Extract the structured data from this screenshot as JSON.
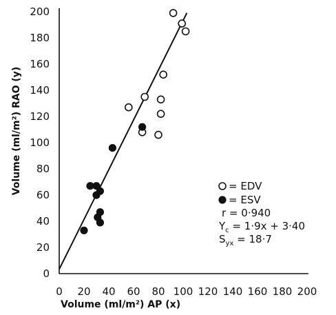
{
  "chart_data": {
    "type": "scatter",
    "title": "",
    "xlabel": "Volume (ml/m²) AP (x)",
    "ylabel": "Volume (ml/m²) RAO (y)",
    "xlim": [
      0,
      200
    ],
    "ylim": [
      0,
      200
    ],
    "x_ticks": [
      0,
      20,
      40,
      60,
      80,
      100,
      120,
      140,
      160,
      180,
      200
    ],
    "y_ticks": [
      0,
      20,
      40,
      60,
      80,
      100,
      120,
      140,
      160,
      180,
      200
    ],
    "grid": false,
    "legend_position": "right",
    "series": [
      {
        "name": "EDV",
        "marker": "open-circle",
        "points": [
          [
            56,
            127
          ],
          [
            67,
            108
          ],
          [
            69,
            135
          ],
          [
            80,
            106
          ],
          [
            82,
            122
          ],
          [
            82,
            133
          ],
          [
            84,
            152
          ],
          [
            92,
            199
          ],
          [
            99,
            191
          ],
          [
            102,
            185
          ]
        ]
      },
      {
        "name": "ESV",
        "marker": "filled-circle",
        "points": [
          [
            20,
            33
          ],
          [
            25,
            67
          ],
          [
            30,
            67
          ],
          [
            30,
            60
          ],
          [
            31,
            43
          ],
          [
            33,
            39
          ],
          [
            33,
            47
          ],
          [
            33,
            63
          ],
          [
            43,
            96
          ],
          [
            67,
            112
          ]
        ]
      }
    ],
    "regression": {
      "slope": 1.9,
      "intercept": 3.4,
      "x_range": [
        0,
        103
      ]
    },
    "legend_entries": [
      "= EDV",
      "= ESV"
    ],
    "annotations": {
      "r": "r = 0·940",
      "yc_main": "Y",
      "yc_sub": "c",
      "yc_rest": " = 1·9x + 3·40",
      "syx_main": "S",
      "syx_sub": "yx",
      "syx_rest": " = 18·7"
    }
  }
}
